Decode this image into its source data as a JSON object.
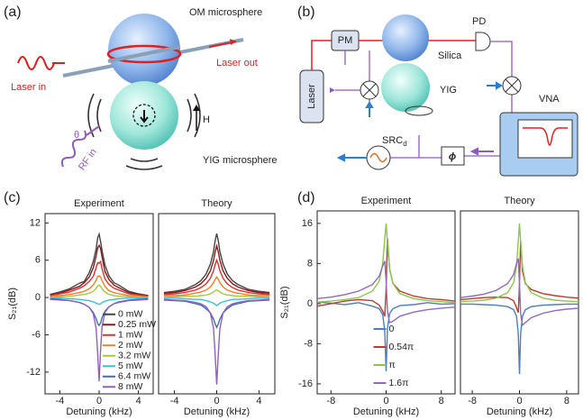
{
  "panel_labels": [
    "(a)",
    "(b)",
    "(c)",
    "(d)"
  ],
  "diagram_a": {
    "om_microsphere": "OM microsphere",
    "laser_in": "Laser in",
    "laser_out": "Laser out",
    "yig_microsphere": "YIG microsphere",
    "field": "H",
    "angle": "θ",
    "rf_in": "RF in"
  },
  "diagram_b": {
    "pm": "PM",
    "pd": "PD",
    "silica": "Silica",
    "yig": "YIG",
    "laser": "Laser",
    "vna": "VNA",
    "src": {
      "label": "SRC",
      "subscript": "d"
    },
    "phase": "ϕ"
  },
  "chart_data": [
    {
      "type": "line",
      "title": "Experiment",
      "xlabel": "Detuning (kHz)",
      "ylabel": "S₂₁(dB)",
      "legend": "lower right",
      "x": [
        -5,
        -4,
        -3,
        -2,
        -1.5,
        -1,
        -0.6,
        -0.3,
        -0.15,
        0,
        0.15,
        0.3,
        0.6,
        1,
        1.5,
        2,
        3,
        4,
        5
      ],
      "xlim": [
        -5.5,
        5.5
      ],
      "ylim": [
        -15.5,
        13.5
      ],
      "xticks": [
        -4,
        0,
        4
      ],
      "yticks": [
        12,
        6,
        0,
        -6,
        -12
      ],
      "series": [
        {
          "name": "0 mW",
          "color": "#444444",
          "values": [
            0.5,
            0.9,
            1.4,
            2.3,
            2.6,
            4.0,
            5.8,
            7.8,
            9.6,
            10.2,
            9.0,
            7.5,
            5.2,
            3.5,
            2.4,
            2.0,
            1.0,
            0.6,
            0.3
          ]
        },
        {
          "name": "0.25 mW",
          "color": "#8b1a1a",
          "values": [
            0.4,
            0.7,
            1.2,
            1.8,
            2.4,
            3.3,
            4.8,
            6.7,
            8.0,
            8.4,
            7.9,
            6.5,
            4.2,
            2.9,
            2.0,
            1.6,
            0.8,
            0.5,
            0.3
          ]
        },
        {
          "name": "1 mW",
          "color": "#e03030",
          "values": [
            0.3,
            0.6,
            0.9,
            1.5,
            1.9,
            2.6,
            3.4,
            4.8,
            5.6,
            5.5,
            5.8,
            4.6,
            3.0,
            2.1,
            1.5,
            1.2,
            0.6,
            0.4,
            0.2
          ]
        },
        {
          "name": "2 mW",
          "color": "#f08020",
          "values": [
            0.1,
            0.3,
            0.5,
            0.8,
            1.0,
            1.4,
            2.0,
            2.8,
            3.4,
            3.5,
            3.3,
            2.7,
            1.8,
            1.1,
            0.8,
            0.6,
            0.3,
            0.2,
            0.1
          ]
        },
        {
          "name": "3.2 mW",
          "color": "#a8c840",
          "values": [
            0,
            0.1,
            0.2,
            0.4,
            0.5,
            0.7,
            1.0,
            1.5,
            1.9,
            2.0,
            1.8,
            1.4,
            0.9,
            0.5,
            0.3,
            0.2,
            0.1,
            0.1,
            0
          ]
        },
        {
          "name": "5 mW",
          "color": "#3cc0d8",
          "values": [
            -0.1,
            -0.1,
            -0.2,
            -0.3,
            -0.4,
            -0.5,
            -0.7,
            -0.9,
            -1.0,
            -1.1,
            -1.0,
            -0.8,
            -0.6,
            -0.4,
            -0.3,
            -0.2,
            -0.1,
            -0.1,
            0
          ]
        },
        {
          "name": "6.4 mW",
          "color": "#3a6cc0",
          "values": [
            -0.2,
            -0.3,
            -0.5,
            -0.8,
            -1.1,
            -1.6,
            -2.4,
            -3.4,
            -4.2,
            -4.5,
            -4.1,
            -3.2,
            -2.2,
            -1.5,
            -1.0,
            -0.7,
            -0.4,
            -0.3,
            -0.2
          ]
        },
        {
          "name": "8 mW",
          "color": "#9060c0",
          "values": [
            -0.3,
            -0.4,
            -0.5,
            -0.8,
            -1.1,
            -1.6,
            -2.6,
            -5.0,
            -9.0,
            -13.5,
            -8.5,
            -4.6,
            -2.4,
            -1.5,
            -1.0,
            -0.8,
            -0.5,
            -0.4,
            -0.3
          ]
        }
      ]
    },
    {
      "type": "line",
      "title": "Theory",
      "xlabel": "Detuning (kHz)",
      "x": [
        -5,
        -4,
        -3,
        -2,
        -1.5,
        -1,
        -0.6,
        -0.3,
        -0.15,
        0,
        0.15,
        0.3,
        0.6,
        1,
        1.5,
        2,
        3,
        4,
        5
      ],
      "xlim": [
        -5.5,
        5.5
      ],
      "ylim": [
        -15.5,
        13.5
      ],
      "xticks": [
        -4,
        0,
        4
      ],
      "series": [
        {
          "color": "#444444",
          "values": [
            0.8,
            1.0,
            1.3,
            2.1,
            2.7,
            3.8,
            5.4,
            7.4,
            9.1,
            10.3,
            9.1,
            7.4,
            5.4,
            3.8,
            2.7,
            2.1,
            1.3,
            1.0,
            0.8
          ]
        },
        {
          "color": "#8b1a1a",
          "values": [
            0.7,
            0.8,
            1.1,
            1.7,
            2.2,
            3.1,
            4.3,
            6.0,
            7.3,
            8.3,
            7.3,
            6.0,
            4.3,
            3.1,
            2.2,
            1.7,
            1.1,
            0.8,
            0.7
          ]
        },
        {
          "color": "#e03030",
          "values": [
            0.5,
            0.6,
            0.8,
            1.2,
            1.6,
            2.2,
            3.1,
            4.3,
            5.3,
            6.0,
            5.3,
            4.3,
            3.1,
            2.2,
            1.6,
            1.2,
            0.8,
            0.6,
            0.5
          ]
        },
        {
          "color": "#f08020",
          "values": [
            0.3,
            0.3,
            0.4,
            0.7,
            0.9,
            1.2,
            1.7,
            2.4,
            2.9,
            3.3,
            2.9,
            2.4,
            1.7,
            1.2,
            0.9,
            0.7,
            0.4,
            0.3,
            0.3
          ]
        },
        {
          "color": "#a8c840",
          "values": [
            0.1,
            0.1,
            0.2,
            0.2,
            0.3,
            0.4,
            0.6,
            0.9,
            1.1,
            1.2,
            1.1,
            0.9,
            0.6,
            0.4,
            0.3,
            0.2,
            0.2,
            0.1,
            0.1
          ]
        },
        {
          "color": "#3cc0d8",
          "values": [
            -0.1,
            -0.1,
            -0.2,
            -0.3,
            -0.3,
            -0.5,
            -0.7,
            -0.9,
            -1.1,
            -1.3,
            -1.1,
            -0.9,
            -0.7,
            -0.5,
            -0.3,
            -0.3,
            -0.2,
            -0.1,
            -0.1
          ]
        },
        {
          "color": "#3a6cc0",
          "values": [
            -0.4,
            -0.5,
            -0.6,
            -1.0,
            -1.2,
            -1.8,
            -2.5,
            -3.5,
            -4.2,
            -4.8,
            -4.2,
            -3.5,
            -2.5,
            -1.8,
            -1.2,
            -1.0,
            -0.6,
            -0.5,
            -0.4
          ]
        },
        {
          "color": "#9060c0",
          "values": [
            -0.3,
            -0.4,
            -0.5,
            -0.8,
            -1.0,
            -1.5,
            -2.5,
            -5.0,
            -9.0,
            -14.0,
            -9.0,
            -5.0,
            -2.5,
            -1.5,
            -1.0,
            -0.8,
            -0.5,
            -0.4,
            -0.3
          ]
        }
      ]
    },
    {
      "type": "line",
      "title": "Experiment",
      "xlabel": "Detuning (kHz)",
      "ylabel": "S₂₁(dB)",
      "legend": "lower center",
      "x": [
        -10,
        -8,
        -6,
        -4,
        -2,
        -1,
        -0.5,
        -0.2,
        0,
        0.2,
        0.5,
        1,
        2,
        4,
        6,
        8,
        10
      ],
      "xlim": [
        -10,
        10
      ],
      "ylim": [
        -18,
        18.5
      ],
      "xticks": [
        -8,
        0,
        8
      ],
      "yticks": [
        16,
        8,
        0,
        -8,
        -16
      ],
      "series": [
        {
          "name": "0",
          "color": "#4a7fc1",
          "values": [
            0.3,
            0.1,
            -0.2,
            0.2,
            -0.5,
            -1.0,
            -2.2,
            -5.5,
            -13.5,
            -5,
            -2,
            -1,
            -0.4,
            -0.2,
            0.2,
            -0.1,
            0
          ]
        },
        {
          "name": "0.54π",
          "color": "#c0392b",
          "values": [
            -0.5,
            0,
            0.5,
            0.8,
            0.6,
            -0.3,
            -1.5,
            -2.5,
            3,
            13,
            7,
            4,
            2.5,
            1.5,
            1,
            0.8,
            0.5
          ]
        },
        {
          "name": "π",
          "color": "#8cc84b",
          "values": [
            0.3,
            0.5,
            0.8,
            1.2,
            2.5,
            4.5,
            8,
            13,
            16,
            12,
            7,
            4,
            2,
            1,
            0.6,
            0.4,
            0.2
          ]
        },
        {
          "name": "1.6π",
          "color": "#8e6bbd",
          "values": [
            1,
            1.3,
            1.8,
            2.5,
            3.8,
            5.5,
            7.5,
            8.5,
            4.5,
            -1.5,
            -3.8,
            -3.5,
            -2.5,
            -1.7,
            -1.2,
            -0.9,
            -0.7
          ]
        }
      ]
    },
    {
      "type": "line",
      "title": "Theory",
      "xlabel": "Detuning (kHz)",
      "x": [
        -10,
        -8,
        -6,
        -4,
        -2,
        -1,
        -0.5,
        -0.2,
        0,
        0.2,
        0.5,
        1,
        2,
        4,
        6,
        8,
        10
      ],
      "xlim": [
        -10,
        10
      ],
      "ylim": [
        -18,
        18.5
      ],
      "xticks": [
        -8,
        0,
        8
      ],
      "series": [
        {
          "color": "#4a7fc1",
          "values": [
            -0.1,
            -0.1,
            -0.2,
            -0.3,
            -0.6,
            -1.2,
            -2.5,
            -6,
            -14,
            -6,
            -2.5,
            -1.2,
            -0.6,
            -0.3,
            -0.2,
            -0.1,
            -0.1
          ]
        },
        {
          "color": "#c0392b",
          "values": [
            0.8,
            1.0,
            1.2,
            1.3,
            1.2,
            0.6,
            -0.8,
            -1.8,
            4,
            12.5,
            6.5,
            4.0,
            2.8,
            2.0,
            1.6,
            1.3,
            1.1
          ]
        },
        {
          "color": "#8cc84b",
          "values": [
            0.4,
            0.5,
            0.7,
            1.1,
            2.2,
            4.2,
            7.5,
            12.5,
            16,
            12.5,
            7.5,
            4.2,
            2.2,
            1.1,
            0.7,
            0.5,
            0.4
          ]
        },
        {
          "color": "#8e6bbd",
          "values": [
            1.2,
            1.5,
            1.9,
            2.6,
            4,
            5.8,
            8,
            9,
            4,
            -2,
            -4.3,
            -3.8,
            -2.8,
            -1.9,
            -1.4,
            -1.1,
            -0.9
          ]
        }
      ]
    }
  ]
}
